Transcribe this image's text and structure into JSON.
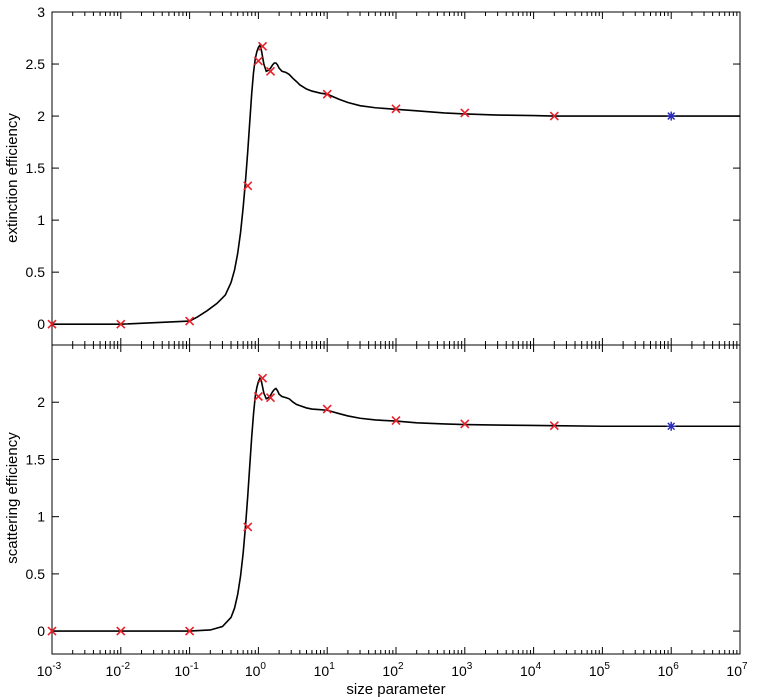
{
  "chart_data": [
    {
      "type": "line",
      "xlabel": "",
      "ylabel": "extinction efficiency",
      "xscale": "log",
      "xlim": [
        0.001,
        10000000
      ],
      "ylim": [
        -0.2,
        3
      ],
      "yticks": [
        "0",
        "0.5",
        "1",
        "1.5",
        "2",
        "2.5",
        "3"
      ],
      "ytick_values": [
        0,
        0.5,
        1,
        1.5,
        2,
        2.5,
        3
      ],
      "grid": false,
      "line_color": "#000000",
      "curve": {
        "x": [
          0.001,
          0.01,
          0.1,
          0.13,
          0.18,
          0.25,
          0.33,
          0.4,
          0.45,
          0.5,
          0.55,
          0.6,
          0.65,
          0.7,
          0.75,
          0.8,
          0.85,
          0.9,
          0.95,
          1.0,
          1.05,
          1.1,
          1.2,
          1.3,
          1.4,
          1.5,
          1.6,
          1.7,
          1.8,
          1.9,
          2.0,
          2.2,
          2.5,
          2.8,
          3.2,
          3.6,
          4,
          5,
          6,
          8,
          10,
          15,
          20,
          30,
          50,
          100,
          200,
          500,
          1000,
          3000,
          10000,
          20000,
          100000,
          1000000,
          10000000
        ],
        "y": [
          0.0,
          0.0,
          0.03,
          0.07,
          0.13,
          0.2,
          0.28,
          0.4,
          0.52,
          0.68,
          0.88,
          1.12,
          1.38,
          1.66,
          1.95,
          2.22,
          2.42,
          2.55,
          2.62,
          2.66,
          2.68,
          2.64,
          2.5,
          2.43,
          2.44,
          2.46,
          2.49,
          2.51,
          2.51,
          2.49,
          2.46,
          2.43,
          2.42,
          2.4,
          2.36,
          2.33,
          2.3,
          2.26,
          2.24,
          2.22,
          2.21,
          2.16,
          2.13,
          2.1,
          2.08,
          2.065,
          2.05,
          2.03,
          2.02,
          2.01,
          2.005,
          2.0,
          2.0,
          2.0,
          2.0
        ]
      },
      "markers_red_x": {
        "color": "#e8202a",
        "x": [
          0.001,
          0.01,
          0.1,
          0.7,
          1.0,
          1.15,
          1.5,
          10,
          100,
          1000,
          20000
        ],
        "y": [
          0.0,
          0.0,
          0.03,
          1.33,
          2.53,
          2.67,
          2.43,
          2.21,
          2.07,
          2.03,
          2.0
        ]
      },
      "markers_blue_star": {
        "color": "#2b2fb8",
        "x": [
          1000000
        ],
        "y": [
          2.0
        ]
      }
    },
    {
      "type": "line",
      "xlabel": "size parameter",
      "ylabel": "scattering efficiency",
      "xscale": "log",
      "xlim": [
        0.001,
        10000000
      ],
      "ylim": [
        -0.2,
        2.5
      ],
      "yticks": [
        "0",
        "0.5",
        "1",
        "1.5",
        "2"
      ],
      "ytick_values": [
        0,
        0.5,
        1,
        1.5,
        2
      ],
      "xticks": [
        {
          "base": "10",
          "exp": "-3"
        },
        {
          "base": "10",
          "exp": "-2"
        },
        {
          "base": "10",
          "exp": "-1"
        },
        {
          "base": "10",
          "exp": "0"
        },
        {
          "base": "10",
          "exp": "1"
        },
        {
          "base": "10",
          "exp": "2"
        },
        {
          "base": "10",
          "exp": "3"
        },
        {
          "base": "10",
          "exp": "4"
        },
        {
          "base": "10",
          "exp": "5"
        },
        {
          "base": "10",
          "exp": "6"
        },
        {
          "base": "10",
          "exp": "7"
        }
      ],
      "xtick_values": [
        0.001,
        0.01,
        0.1,
        1,
        10,
        100,
        1000,
        10000,
        100000,
        1000000,
        10000000
      ],
      "grid": false,
      "line_color": "#000000",
      "curve": {
        "x": [
          0.001,
          0.01,
          0.1,
          0.2,
          0.3,
          0.4,
          0.45,
          0.5,
          0.55,
          0.6,
          0.65,
          0.7,
          0.75,
          0.8,
          0.85,
          0.9,
          0.95,
          1.0,
          1.05,
          1.1,
          1.2,
          1.3,
          1.4,
          1.5,
          1.6,
          1.7,
          1.8,
          1.9,
          2.0,
          2.2,
          2.5,
          2.8,
          3.2,
          3.6,
          4,
          5,
          6,
          8,
          10,
          15,
          20,
          30,
          50,
          100,
          200,
          500,
          1000,
          3000,
          10000,
          20000,
          100000,
          1000000,
          10000000
        ],
        "y": [
          0.0,
          0.0,
          0.0,
          0.01,
          0.04,
          0.12,
          0.2,
          0.32,
          0.48,
          0.68,
          0.92,
          1.18,
          1.45,
          1.7,
          1.9,
          2.05,
          2.13,
          2.18,
          2.21,
          2.19,
          2.08,
          2.03,
          2.04,
          2.06,
          2.09,
          2.11,
          2.12,
          2.1,
          2.07,
          2.05,
          2.04,
          2.03,
          2.0,
          1.98,
          1.97,
          1.95,
          1.94,
          1.935,
          1.93,
          1.9,
          1.88,
          1.86,
          1.845,
          1.835,
          1.82,
          1.81,
          1.805,
          1.8,
          1.797,
          1.795,
          1.79,
          1.79,
          1.79
        ]
      },
      "markers_red_x": {
        "color": "#e8202a",
        "x": [
          0.001,
          0.01,
          0.1,
          0.7,
          1.0,
          1.15,
          1.5,
          10,
          100,
          1000,
          20000
        ],
        "y": [
          0.0,
          0.0,
          0.0,
          0.91,
          2.05,
          2.21,
          2.04,
          1.94,
          1.84,
          1.81,
          1.795
        ]
      },
      "markers_blue_star": {
        "color": "#2b2fb8",
        "x": [
          1000000
        ],
        "y": [
          1.79
        ]
      }
    }
  ]
}
